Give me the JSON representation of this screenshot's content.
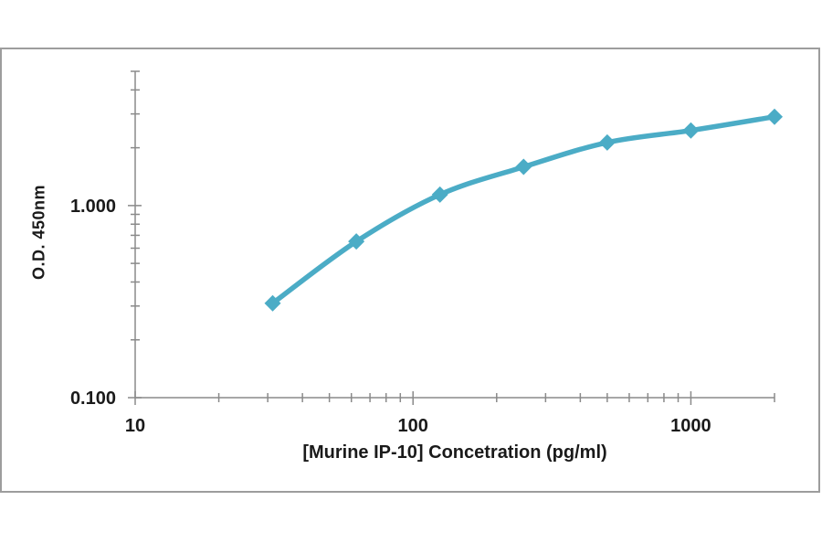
{
  "chart_data": {
    "type": "line",
    "title": "",
    "xlabel": "[Murine IP-10] Concetration (pg/ml)",
    "ylabel": "O.D. 450nm",
    "x": [
      31.25,
      62.5,
      125,
      250,
      500,
      1000,
      2000
    ],
    "y": [
      0.31,
      0.65,
      1.14,
      1.59,
      2.13,
      2.46,
      2.9
    ],
    "x_scale": "log",
    "y_scale": "log",
    "xlim": [
      10,
      2000
    ],
    "ylim": [
      0.1,
      5
    ],
    "x_ticks": {
      "major": [
        10,
        100,
        1000
      ],
      "labels": [
        "10",
        "100",
        "1000"
      ],
      "minor": [
        20,
        30,
        40,
        50,
        60,
        70,
        80,
        90,
        200,
        300,
        400,
        500,
        600,
        700,
        800,
        900,
        2000
      ]
    },
    "y_ticks": {
      "major": [
        0.1,
        1
      ],
      "labels": [
        "0.100",
        "1.000"
      ],
      "minor": [
        0.2,
        0.3,
        0.4,
        0.5,
        0.6,
        0.7,
        0.8,
        0.9,
        2,
        3,
        4,
        5
      ]
    },
    "grid": false,
    "legend": "none",
    "marker": "diamond",
    "line_smooth": true,
    "colors": {
      "line": "#4BACC6",
      "axis": "#8A8A8A",
      "text": "#1A1A1A",
      "frame": "#9D9D9D",
      "background": "#FFFFFF"
    }
  }
}
